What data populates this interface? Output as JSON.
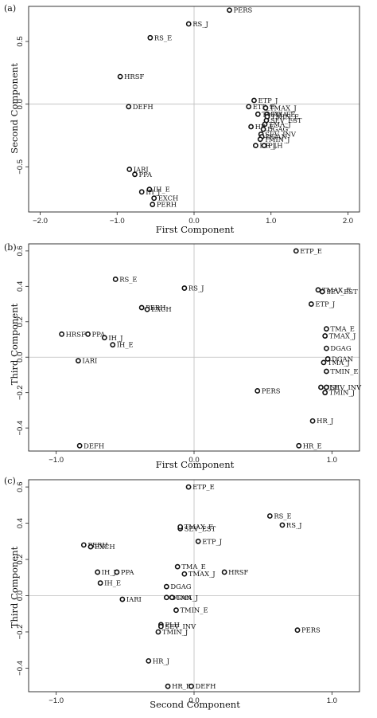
{
  "chart_data": [
    {
      "type": "scatter",
      "panel_label": "(a)",
      "xlabel": "First Component",
      "ylabel": "Second Component",
      "xlim": [
        -2.15,
        2.15
      ],
      "ylim": [
        -0.86,
        0.78
      ],
      "xticks": [
        -2.0,
        -1.0,
        0.0,
        1.0,
        2.0
      ],
      "xtick_labels": [
        "−2.0",
        "−1.0",
        "0.0",
        "1.0",
        "2.0"
      ],
      "yticks": [
        -0.5,
        0.0,
        0.5
      ],
      "ytick_labels": [
        "−0.5",
        "0.0",
        "0.5"
      ],
      "grid": false,
      "zero_lines": true,
      "points": [
        {
          "label": "PERS",
          "x": 0.46,
          "y": 0.75
        },
        {
          "label": "RS_J",
          "x": -0.07,
          "y": 0.64
        },
        {
          "label": "RS_E",
          "x": -0.57,
          "y": 0.53
        },
        {
          "label": "HRSF",
          "x": -0.96,
          "y": 0.22
        },
        {
          "label": "DEFH",
          "x": -0.85,
          "y": -0.02
        },
        {
          "label": "ETP_J",
          "x": 0.78,
          "y": 0.03
        },
        {
          "label": "ETP_E",
          "x": 0.71,
          "y": -0.02
        },
        {
          "label": "TMAX_J",
          "x": 0.93,
          "y": -0.03
        },
        {
          "label": "TMA_E",
          "x": 0.95,
          "y": -0.08
        },
        {
          "label": "TMAX_E",
          "x": 0.83,
          "y": -0.08
        },
        {
          "label": "TMIN_E",
          "x": 0.95,
          "y": -0.1
        },
        {
          "label": "SEV_EST",
          "x": 0.94,
          "y": -0.13
        },
        {
          "label": "TMA_J",
          "x": 0.92,
          "y": -0.16
        },
        {
          "label": "HR_E",
          "x": 0.74,
          "y": -0.18
        },
        {
          "label": "DGAG",
          "x": 0.9,
          "y": -0.2
        },
        {
          "label": "SEV_INV",
          "x": 0.87,
          "y": -0.24
        },
        {
          "label": "DGAN",
          "x": 0.88,
          "y": -0.26
        },
        {
          "label": "TMIN_J",
          "x": 0.86,
          "y": -0.28
        },
        {
          "label": "HR_J",
          "x": 0.8,
          "y": -0.33
        },
        {
          "label": "PLH",
          "x": 0.91,
          "y": -0.33
        },
        {
          "label": "IARI",
          "x": -0.84,
          "y": -0.52
        },
        {
          "label": "PPA",
          "x": -0.77,
          "y": -0.56
        },
        {
          "label": "IH_E",
          "x": -0.58,
          "y": -0.68
        },
        {
          "label": "IH_J",
          "x": -0.68,
          "y": -0.7
        },
        {
          "label": "EXCH",
          "x": -0.52,
          "y": -0.75
        },
        {
          "label": "PERH",
          "x": -0.54,
          "y": -0.8
        }
      ]
    },
    {
      "type": "scatter",
      "panel_label": "(b)",
      "xlabel": "First Component",
      "ylabel": "Third Component",
      "xlim": [
        -1.2,
        1.2
      ],
      "ylim": [
        -0.53,
        0.64
      ],
      "xticks": [
        -1.0,
        0.0,
        1.0
      ],
      "xtick_labels": [
        "−1.0",
        "0.0",
        "1.0"
      ],
      "yticks": [
        -0.4,
        -0.2,
        0.0,
        0.2,
        0.4,
        0.6
      ],
      "ytick_labels": [
        "−0.4",
        "−0.2",
        "0.0",
        "0.2",
        "0.4",
        "0.6"
      ],
      "grid": false,
      "zero_lines": true,
      "points": [
        {
          "label": "ETP_E",
          "x": 0.74,
          "y": 0.6
        },
        {
          "label": "RS_E",
          "x": -0.57,
          "y": 0.44
        },
        {
          "label": "RS_J",
          "x": -0.07,
          "y": 0.39
        },
        {
          "label": "TMAX_E",
          "x": 0.9,
          "y": 0.38
        },
        {
          "label": "SEV_EST",
          "x": 0.93,
          "y": 0.37
        },
        {
          "label": "ETP_J",
          "x": 0.85,
          "y": 0.3
        },
        {
          "label": "PERH",
          "x": -0.38,
          "y": 0.28
        },
        {
          "label": "EXCH",
          "x": -0.34,
          "y": 0.27
        },
        {
          "label": "TMA_E",
          "x": 0.96,
          "y": 0.16
        },
        {
          "label": "TMAX_J",
          "x": 0.95,
          "y": 0.12
        },
        {
          "label": "HRSF",
          "x": -0.96,
          "y": 0.13
        },
        {
          "label": "PPA",
          "x": -0.77,
          "y": 0.13
        },
        {
          "label": "IH_J",
          "x": -0.65,
          "y": 0.11
        },
        {
          "label": "IH_E",
          "x": -0.59,
          "y": 0.07
        },
        {
          "label": "DGAG",
          "x": 0.96,
          "y": 0.05
        },
        {
          "label": "IARI",
          "x": -0.84,
          "y": -0.02
        },
        {
          "label": "DGAN",
          "x": 0.97,
          "y": -0.01
        },
        {
          "label": "TMA_J",
          "x": 0.94,
          "y": -0.03
        },
        {
          "label": "TMIN_E",
          "x": 0.96,
          "y": -0.08
        },
        {
          "label": "PLH",
          "x": 0.92,
          "y": -0.17
        },
        {
          "label": "SEV_INV",
          "x": 0.96,
          "y": -0.17
        },
        {
          "label": "TMIN_J",
          "x": 0.95,
          "y": -0.2
        },
        {
          "label": "PERS",
          "x": 0.46,
          "y": -0.19
        },
        {
          "label": "HR_J",
          "x": 0.86,
          "y": -0.36
        },
        {
          "label": "DEFH",
          "x": -0.83,
          "y": -0.5
        },
        {
          "label": "HR_E",
          "x": 0.76,
          "y": -0.5
        }
      ]
    },
    {
      "type": "scatter",
      "panel_label": "(c)",
      "xlabel": "Second Component",
      "ylabel": "Third Component",
      "xlim": [
        -1.2,
        1.2
      ],
      "ylim": [
        -0.53,
        0.64
      ],
      "xticks": [
        -1.0,
        0.0,
        1.0
      ],
      "xtick_labels": [
        "−1.0",
        "0.0",
        "1.0"
      ],
      "yticks": [
        -0.4,
        -0.2,
        0.0,
        0.2,
        0.4,
        0.6
      ],
      "ytick_labels": [
        "−0.4",
        "−0.2",
        "0.0",
        "0.2",
        "0.4",
        "0.6"
      ],
      "grid": false,
      "zero_lines": true,
      "points": [
        {
          "label": "ETP_E",
          "x": -0.04,
          "y": 0.6
        },
        {
          "label": "RS_E",
          "x": 0.55,
          "y": 0.44
        },
        {
          "label": "RS_J",
          "x": 0.64,
          "y": 0.39
        },
        {
          "label": "SEV_EST",
          "x": -0.1,
          "y": 0.37
        },
        {
          "label": "TMAX_E",
          "x": -0.1,
          "y": 0.38
        },
        {
          "label": "ETP_J",
          "x": 0.03,
          "y": 0.3
        },
        {
          "label": "PERH",
          "x": -0.8,
          "y": 0.28
        },
        {
          "label": "EXCH",
          "x": -0.75,
          "y": 0.27
        },
        {
          "label": "TMA_E",
          "x": -0.12,
          "y": 0.16
        },
        {
          "label": "HRSF",
          "x": 0.22,
          "y": 0.13
        },
        {
          "label": "IH_J",
          "x": -0.7,
          "y": 0.13
        },
        {
          "label": "PPA",
          "x": -0.56,
          "y": 0.13
        },
        {
          "label": "TMAX_J",
          "x": -0.07,
          "y": 0.12
        },
        {
          "label": "IH_E",
          "x": -0.68,
          "y": 0.07
        },
        {
          "label": "DGAG",
          "x": -0.2,
          "y": 0.05
        },
        {
          "label": "IARI",
          "x": -0.52,
          "y": -0.02
        },
        {
          "label": "DGAN",
          "x": -0.2,
          "y": -0.01
        },
        {
          "label": "TMA_J",
          "x": -0.16,
          "y": -0.01
        },
        {
          "label": "TMIN_E",
          "x": -0.13,
          "y": -0.08
        },
        {
          "label": "PLH",
          "x": -0.24,
          "y": -0.16
        },
        {
          "label": "SEV_INV",
          "x": -0.24,
          "y": -0.17
        },
        {
          "label": "TMIN_J",
          "x": -0.26,
          "y": -0.2
        },
        {
          "label": "PERS",
          "x": 0.75,
          "y": -0.19
        },
        {
          "label": "HR_J",
          "x": -0.33,
          "y": -0.36
        },
        {
          "label": "HR_E",
          "x": -0.19,
          "y": -0.5
        },
        {
          "label": "DEFH",
          "x": -0.02,
          "y": -0.5
        }
      ]
    }
  ]
}
